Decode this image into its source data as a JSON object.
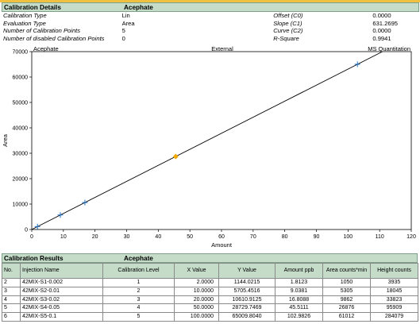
{
  "details": {
    "section_title": "Calibration Details",
    "compound": "Acephate",
    "rows": [
      {
        "label": "Calibration Type",
        "value": "Lin",
        "label2": "Offset (C0)",
        "value2": "0.0000"
      },
      {
        "label": "Evaluation Type",
        "value": "Area",
        "label2": "Slope (C1)",
        "value2": "631.2695"
      },
      {
        "label": "Number of Calibration Points",
        "value": "5",
        "label2": "Curve (C2)",
        "value2": "0.0000"
      },
      {
        "label": "Number of disabled Calibration Points",
        "value": "0",
        "label2": "R-Square",
        "value2": "0.9941"
      }
    ]
  },
  "chart_data": {
    "type": "scatter",
    "top_labels": {
      "left": "Acephate",
      "center": "External",
      "right": "MS Quantitation"
    },
    "xlabel": "Amount",
    "ylabel": "Area",
    "xlim": [
      0,
      120
    ],
    "ylim": [
      0,
      70000
    ],
    "x_ticks": [
      0,
      10,
      20,
      30,
      40,
      50,
      60,
      70,
      80,
      90,
      100,
      110,
      120
    ],
    "y_ticks": [
      0,
      10000,
      20000,
      30000,
      40000,
      50000,
      60000,
      70000
    ],
    "points": [
      {
        "x": 1.8123,
        "y": 1144.0215,
        "marker": "cross"
      },
      {
        "x": 9.0381,
        "y": 5705.4516,
        "marker": "cross"
      },
      {
        "x": 16.8088,
        "y": 10610.9125,
        "marker": "cross"
      },
      {
        "x": 45.5111,
        "y": 28729.7469,
        "marker": "diamond"
      },
      {
        "x": 102.9826,
        "y": 65009.804,
        "marker": "cross"
      }
    ],
    "fit_line": {
      "offset": 0,
      "slope": 631.2695
    },
    "colors": {
      "cross": "#1f6fbf",
      "diamond": "#f0a800",
      "line": "#000000"
    }
  },
  "results": {
    "section_title": "Calibration Results",
    "compound": "Acephate",
    "columns": [
      "No.",
      "Injection Name",
      "Calibration Level",
      "X Value",
      "Y Value",
      "Amount ppb",
      "Area counts*min",
      "Height counts"
    ],
    "rows": [
      [
        "2",
        "42MIX-S1-0.002",
        "1",
        "2.0000",
        "1144.0215",
        "1.8123",
        "1050",
        "3935"
      ],
      [
        "3",
        "42MIX-S2-0.01",
        "2",
        "10.0000",
        "5705.4516",
        "9.0381",
        "5305",
        "18045"
      ],
      [
        "4",
        "42MIX-S3-0.02",
        "3",
        "20.0000",
        "10610.9125",
        "16.8088",
        "9862",
        "33823"
      ],
      [
        "5",
        "42MIX-S4-0.05",
        "4",
        "50.0000",
        "28729.7469",
        "45.5111",
        "26876",
        "95909"
      ],
      [
        "6",
        "42MIX-S5-0.1",
        "5",
        "100.0000",
        "65009.8040",
        "102.9826",
        "61012",
        "284079"
      ]
    ]
  }
}
